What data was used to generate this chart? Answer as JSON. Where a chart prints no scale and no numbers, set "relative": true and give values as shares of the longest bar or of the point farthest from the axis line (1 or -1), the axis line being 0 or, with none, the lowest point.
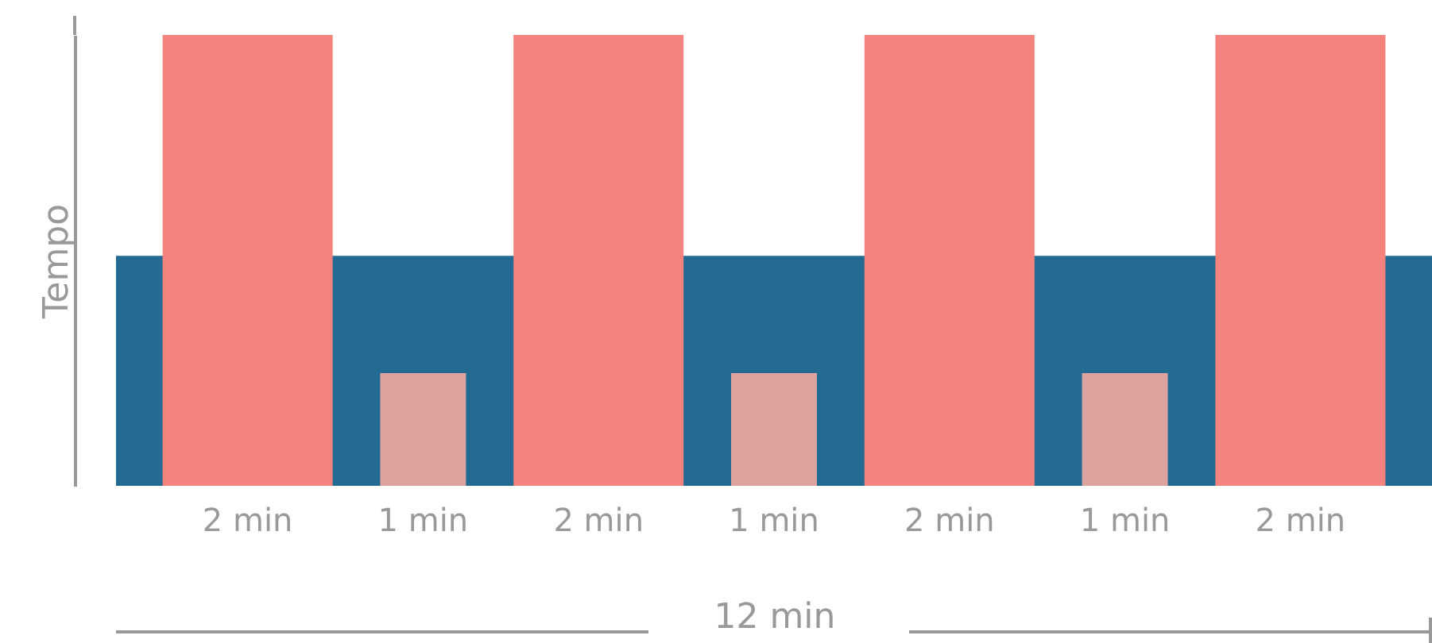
{
  "chart_data": {
    "type": "bar",
    "relative": true,
    "ylabel": "Tempo",
    "xlabel": "12 min",
    "categories": [
      "2 min",
      "1 min",
      "2 min",
      "1 min",
      "2 min",
      "1 min",
      "2 min"
    ],
    "series": [
      {
        "color": "#f4837d",
        "values": [
          1,
          null,
          1,
          null,
          1,
          null,
          1
        ]
      },
      {
        "color": "#dca39f",
        "values": [
          null,
          0.25,
          null,
          0.25,
          null,
          0.25,
          null
        ]
      }
    ],
    "bands": [
      {
        "axis": "y",
        "from": 0,
        "to": 0.51,
        "color": "#236b93"
      }
    ],
    "grid": false
  }
}
